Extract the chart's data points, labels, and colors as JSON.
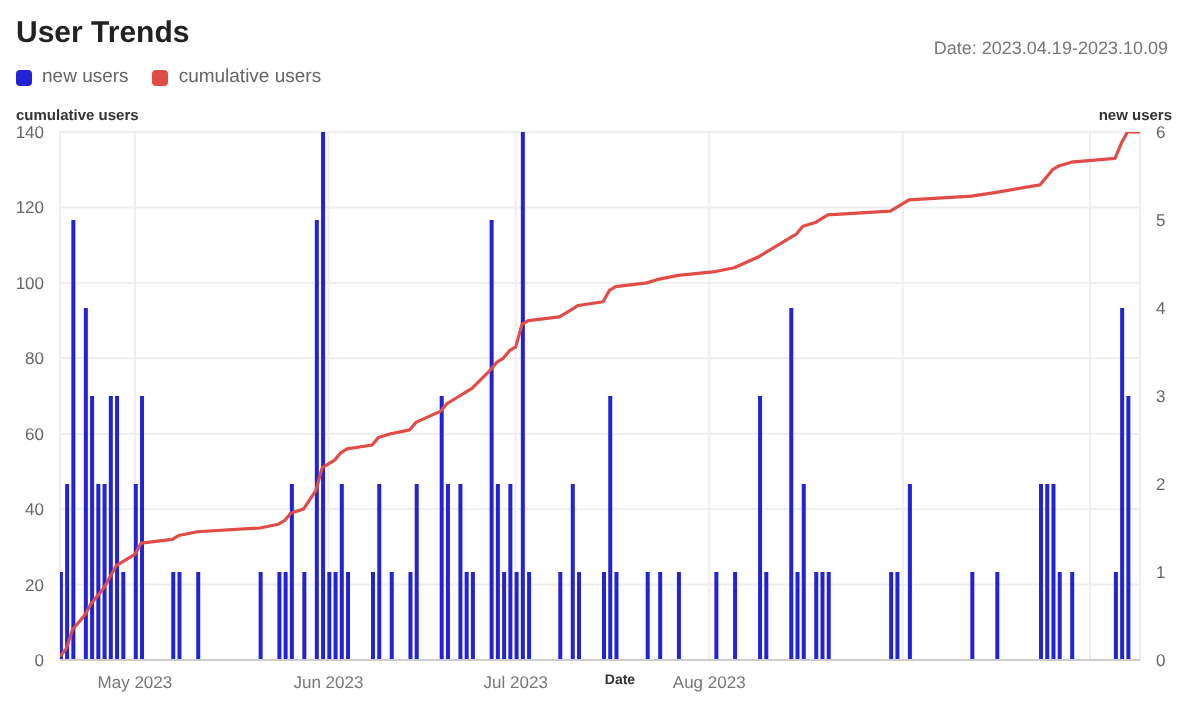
{
  "chart_data": {
    "type": "bar",
    "title": "User Trends",
    "xlabel": "Date",
    "ylabel": "cumulative users",
    "y2label": "new users",
    "annotations": [
      "Date: 2023.04.19-2023.10.09"
    ],
    "legend": "top left",
    "grid": true,
    "xlim": [
      "2023-04-19",
      "2023-10-09"
    ],
    "xticks": [
      {
        "value": "2023-05-01",
        "label": "May 2023"
      },
      {
        "value": "2023-06-01",
        "label": "Jun 2023"
      },
      {
        "value": "2023-07-01",
        "label": "Jul 2023"
      },
      {
        "value": "2023-08-01",
        "label": "Aug 2023"
      },
      {
        "value": "2023-09-01",
        "label": null
      },
      {
        "value": "2023-10-01",
        "label": null
      }
    ],
    "ylim": [
      0,
      140
    ],
    "yticks": [
      0,
      20,
      40,
      60,
      80,
      100,
      120,
      140
    ],
    "y2lim": [
      0,
      6
    ],
    "y2ticks": [
      0,
      1,
      2,
      3,
      4,
      5,
      6
    ],
    "series": [
      {
        "name": "new users",
        "axis": "y2",
        "color": "#2222d6",
        "x": [
          "2023-04-19",
          "2023-04-20",
          "2023-04-21",
          "2023-04-23",
          "2023-04-24",
          "2023-04-25",
          "2023-04-26",
          "2023-04-27",
          "2023-04-28",
          "2023-04-29",
          "2023-05-01",
          "2023-05-02",
          "2023-05-07",
          "2023-05-08",
          "2023-05-11",
          "2023-05-21",
          "2023-05-24",
          "2023-05-25",
          "2023-05-26",
          "2023-05-28",
          "2023-05-30",
          "2023-05-31",
          "2023-06-01",
          "2023-06-02",
          "2023-06-03",
          "2023-06-04",
          "2023-06-08",
          "2023-06-09",
          "2023-06-11",
          "2023-06-14",
          "2023-06-15",
          "2023-06-19",
          "2023-06-20",
          "2023-06-22",
          "2023-06-23",
          "2023-06-24",
          "2023-06-27",
          "2023-06-28",
          "2023-06-29",
          "2023-06-30",
          "2023-07-01",
          "2023-07-02",
          "2023-07-03",
          "2023-07-08",
          "2023-07-10",
          "2023-07-11",
          "2023-07-15",
          "2023-07-16",
          "2023-07-17",
          "2023-07-22",
          "2023-07-24",
          "2023-07-27",
          "2023-08-02",
          "2023-08-05",
          "2023-08-09",
          "2023-08-10",
          "2023-08-14",
          "2023-08-15",
          "2023-08-16",
          "2023-08-18",
          "2023-08-19",
          "2023-08-20",
          "2023-08-30",
          "2023-08-31",
          "2023-09-02",
          "2023-09-12",
          "2023-09-16",
          "2023-09-23",
          "2023-09-24",
          "2023-09-25",
          "2023-09-26",
          "2023-09-28",
          "2023-10-05",
          "2023-10-06",
          "2023-10-07"
        ],
        "values": [
          1,
          2,
          5,
          4,
          3,
          2,
          2,
          3,
          3,
          1,
          2,
          3,
          1,
          1,
          1,
          1,
          1,
          1,
          2,
          1,
          5,
          6,
          1,
          1,
          2,
          1,
          1,
          2,
          1,
          1,
          2,
          3,
          2,
          2,
          1,
          1,
          5,
          2,
          1,
          2,
          1,
          6,
          1,
          1,
          2,
          1,
          1,
          3,
          1,
          1,
          1,
          1,
          1,
          1,
          3,
          1,
          4,
          1,
          2,
          1,
          1,
          1,
          1,
          1,
          2,
          1,
          1,
          2,
          2,
          2,
          1,
          1,
          1,
          4,
          3
        ]
      },
      {
        "name": "cumulative users",
        "type": "line",
        "axis": "y",
        "color": "#e04c46",
        "x": [
          "2023-04-19",
          "2023-04-20",
          "2023-04-21",
          "2023-04-23",
          "2023-04-24",
          "2023-04-25",
          "2023-04-26",
          "2023-04-27",
          "2023-04-28",
          "2023-04-29",
          "2023-05-01",
          "2023-05-02",
          "2023-05-07",
          "2023-05-08",
          "2023-05-11",
          "2023-05-21",
          "2023-05-24",
          "2023-05-25",
          "2023-05-26",
          "2023-05-28",
          "2023-05-30",
          "2023-05-31",
          "2023-06-01",
          "2023-06-02",
          "2023-06-03",
          "2023-06-04",
          "2023-06-08",
          "2023-06-09",
          "2023-06-11",
          "2023-06-14",
          "2023-06-15",
          "2023-06-19",
          "2023-06-20",
          "2023-06-22",
          "2023-06-23",
          "2023-06-24",
          "2023-06-27",
          "2023-06-28",
          "2023-06-29",
          "2023-06-30",
          "2023-07-01",
          "2023-07-02",
          "2023-07-03",
          "2023-07-08",
          "2023-07-10",
          "2023-07-11",
          "2023-07-15",
          "2023-07-16",
          "2023-07-17",
          "2023-07-22",
          "2023-07-24",
          "2023-07-27",
          "2023-08-02",
          "2023-08-05",
          "2023-08-09",
          "2023-08-10",
          "2023-08-14",
          "2023-08-15",
          "2023-08-16",
          "2023-08-18",
          "2023-08-19",
          "2023-08-20",
          "2023-08-30",
          "2023-08-31",
          "2023-09-02",
          "2023-09-12",
          "2023-09-16",
          "2023-09-23",
          "2023-09-24",
          "2023-09-25",
          "2023-09-26",
          "2023-09-28",
          "2023-10-05",
          "2023-10-06",
          "2023-10-07",
          "2023-10-09"
        ],
        "values": [
          1,
          3,
          8,
          12,
          15,
          17,
          19,
          22,
          25,
          26,
          28,
          31,
          32,
          33,
          34,
          35,
          36,
          37,
          39,
          40,
          45,
          51,
          52,
          53,
          55,
          56,
          57,
          59,
          60,
          61,
          63,
          66,
          68,
          70,
          71,
          72,
          77,
          79,
          80,
          82,
          83,
          89,
          90,
          91,
          93,
          94,
          95,
          98,
          99,
          100,
          101,
          102,
          103,
          104,
          107,
          108,
          112,
          113,
          115,
          116,
          117,
          118,
          119,
          120,
          122,
          123,
          124,
          126,
          128,
          130,
          131,
          132,
          133,
          137,
          140,
          140
        ]
      }
    ]
  }
}
